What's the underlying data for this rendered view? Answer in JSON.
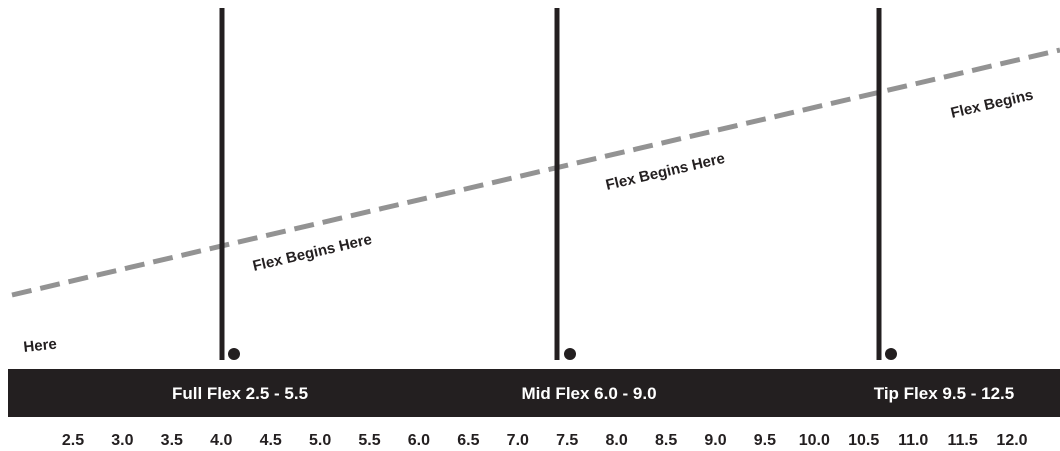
{
  "diagram": {
    "band": {
      "color": "#231f20",
      "text_color": "#ffffff",
      "labels": [
        {
          "id": "full",
          "text": "Full Flex 2.5 - 5.5"
        },
        {
          "id": "mid",
          "text": "Mid Flex 6.0 - 9.0"
        },
        {
          "id": "tip",
          "text": "Tip Flex 9.5 - 12.5"
        }
      ]
    },
    "scale": {
      "values": [
        "2.5",
        "3.0",
        "3.5",
        "4.0",
        "4.5",
        "5.0",
        "5.5",
        "6.0",
        "6.5",
        "7.0",
        "7.5",
        "8.0",
        "8.5",
        "9.0",
        "9.5",
        "10.0",
        "10.5",
        "11.0",
        "11.5",
        "12.0"
      ]
    },
    "poles": {
      "color": "#231f20",
      "items": [
        {
          "name": "full-flex-pole"
        },
        {
          "name": "mid-flex-pole"
        },
        {
          "name": "tip-flex-pole"
        }
      ]
    },
    "flex_line": {
      "color": "#939393",
      "style": "dashed"
    },
    "flex_labels": [
      {
        "name": "flex-label-left",
        "text": "Here"
      },
      {
        "name": "flex-label-1",
        "text": "Flex Begins Here"
      },
      {
        "name": "flex-label-2",
        "text": "Flex Begins Here"
      },
      {
        "name": "flex-label-right",
        "text": "Flex Begins"
      }
    ]
  }
}
